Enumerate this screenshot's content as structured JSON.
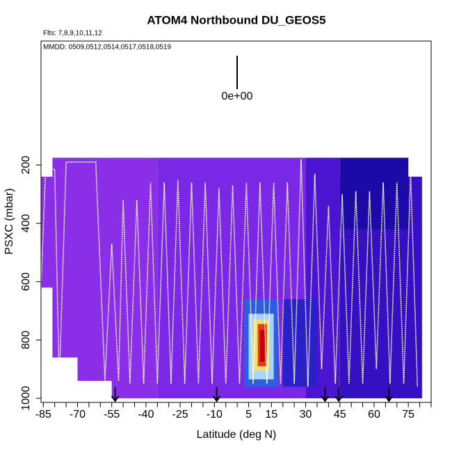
{
  "chart_data": {
    "type": "curtain",
    "title": "ATOM4 Northbound DU_GEOS5",
    "flights_note": "Flts: 7,8,9,10,11,12",
    "dates_note": "MMDD: 0509,0512,0514,0517,0518,0519",
    "colorbar_label": "0e+00",
    "xlabel": "Latitude (deg N)",
    "ylabel": "PSXC (mbar)",
    "xlim": [
      -86,
      85
    ],
    "ylim": [
      -225,
      1014
    ],
    "xticks": [
      -85,
      -70,
      -55,
      -40,
      -25,
      -10,
      5,
      15,
      30,
      45,
      60,
      75
    ],
    "xminorticks": [
      -80,
      -75,
      -65,
      -60,
      -50,
      -45,
      -35,
      -30,
      -20,
      -15,
      -5,
      0,
      10,
      20,
      25,
      35,
      40,
      50,
      55,
      65,
      70,
      80,
      85
    ],
    "yticks": [
      200,
      400,
      600,
      800,
      1000
    ],
    "cells": [
      {
        "x": [
          -86,
          -80
        ],
        "y": [
          240,
          620
        ],
        "color": "#8a2ee8"
      },
      {
        "x": [
          -81,
          -35
        ],
        "y": [
          175,
          860
        ],
        "color": "#8a2ee8"
      },
      {
        "x": [
          -70,
          -35
        ],
        "y": [
          860,
          940
        ],
        "color": "#8a2ee8"
      },
      {
        "x": [
          -55,
          -35
        ],
        "y": [
          940,
          1000
        ],
        "color": "#8a2ee8"
      },
      {
        "x": [
          -35,
          30
        ],
        "y": [
          175,
          1000
        ],
        "color": "#7a28e6"
      },
      {
        "x": [
          30,
          45
        ],
        "y": [
          175,
          1000
        ],
        "color": "#4a14d0"
      },
      {
        "x": [
          45,
          81
        ],
        "y": [
          240,
          1000
        ],
        "color": "#3410c0"
      },
      {
        "x": [
          45,
          75
        ],
        "y": [
          175,
          420
        ],
        "color": "#1c0aa6"
      },
      {
        "x": [
          20,
          35
        ],
        "y": [
          660,
          960
        ],
        "color": "#2a20c8"
      },
      {
        "x": [
          3,
          18
        ],
        "y": [
          660,
          960
        ],
        "color": "#2e5ee0"
      },
      {
        "x": [
          5,
          16
        ],
        "y": [
          710,
          935
        ],
        "color": "#a8d4ff"
      },
      {
        "x": [
          7,
          14
        ],
        "y": [
          730,
          905
        ],
        "color": "#f2e070"
      },
      {
        "x": [
          9,
          13
        ],
        "y": [
          745,
          890
        ],
        "color": "#ea3a12"
      },
      {
        "x": [
          10,
          12
        ],
        "y": [
          765,
          875
        ],
        "color": "#c00000"
      }
    ],
    "track": {
      "color": "#ffffff",
      "x": [
        -86,
        -84,
        -80,
        -78,
        -75,
        -62,
        -58,
        -55,
        -52,
        -50,
        -47,
        -44,
        -41,
        -38,
        -35,
        -32,
        -29,
        -26,
        -23,
        -20,
        -17,
        -14,
        -11,
        -8,
        -5,
        -2,
        1,
        4,
        7,
        10,
        13,
        16,
        19,
        22,
        25,
        28,
        31,
        34,
        37,
        40,
        43,
        46,
        49,
        52,
        55,
        58,
        61,
        64,
        67,
        70,
        73,
        76,
        79
      ],
      "y": [
        620,
        215,
        215,
        950,
        190,
        190,
        940,
        470,
        940,
        320,
        950,
        320,
        950,
        260,
        950,
        260,
        950,
        250,
        950,
        260,
        950,
        260,
        950,
        280,
        950,
        270,
        950,
        260,
        950,
        260,
        950,
        260,
        950,
        260,
        950,
        180,
        960,
        230,
        900,
        340,
        950,
        300,
        950,
        290,
        950,
        290,
        900,
        260,
        950,
        260,
        950,
        230,
        960
      ]
    },
    "arrows": [
      -53.5,
      -9,
      38.5,
      44.5,
      66.5
    ]
  }
}
